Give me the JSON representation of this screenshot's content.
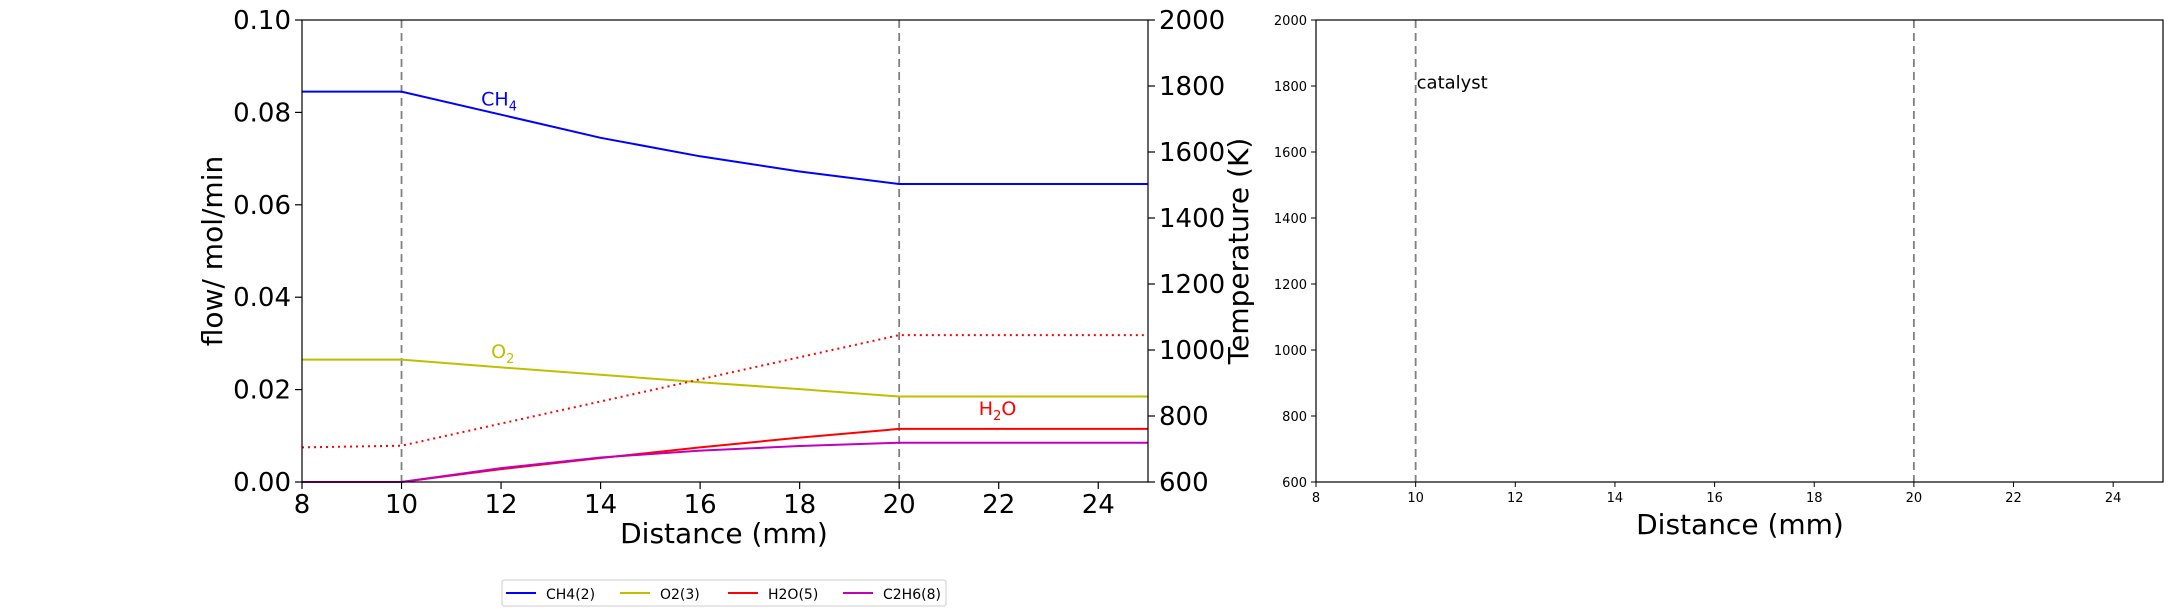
{
  "chart_data": [
    {
      "type": "line",
      "xlabel": "Distance (mm)",
      "ylabel": "flow/ mol/min",
      "y2label": "Temperature (K)",
      "xlim": [
        8,
        25
      ],
      "ylim": [
        0.0,
        0.1
      ],
      "y2lim": [
        600,
        2000
      ],
      "x_ticks": [
        "8",
        "10",
        "12",
        "14",
        "16",
        "18",
        "20",
        "22",
        "24"
      ],
      "y_ticks": [
        "0.00",
        "0.02",
        "0.04",
        "0.06",
        "0.08",
        "0.10"
      ],
      "y2_ticks": [
        "600",
        "800",
        "1000",
        "1200",
        "1400",
        "1600",
        "1800",
        "2000"
      ],
      "vlines": [
        10,
        20
      ],
      "grid": false,
      "series": [
        {
          "name": "CH4(2)",
          "label_main": "CH",
          "label_sub": "4",
          "label_at": [
            11.6,
            0.0815
          ],
          "color": "#0000ff",
          "x": [
            8,
            10,
            12,
            14,
            16,
            18,
            20,
            25
          ],
          "y": [
            0.0845,
            0.0845,
            0.0795,
            0.0745,
            0.0705,
            0.0672,
            0.0645,
            0.0645
          ]
        },
        {
          "name": "O2(3)",
          "label_main": "O",
          "label_sub": "2",
          "label_at": [
            11.8,
            0.0268
          ],
          "color": "#bfbf00",
          "x": [
            8,
            10,
            12,
            14,
            16,
            18,
            20,
            25
          ],
          "y": [
            0.0265,
            0.0265,
            0.0248,
            0.0232,
            0.0216,
            0.0201,
            0.0185,
            0.0185
          ]
        },
        {
          "name": "H2O(5)",
          "label_main": "H",
          "label_sub": "2",
          "label_tail": "O",
          "label_at": [
            21.6,
            0.0145
          ],
          "color": "#ff0000",
          "x": [
            8,
            10,
            12,
            14,
            16,
            18,
            20,
            25
          ],
          "y": [
            0.0,
            0.0,
            0.0028,
            0.0052,
            0.0075,
            0.0096,
            0.0115,
            0.0115
          ]
        },
        {
          "name": "C2H6(8)",
          "color": "#bf00bf",
          "x": [
            8,
            10,
            12,
            14,
            16,
            18,
            20,
            25
          ],
          "y": [
            0.0,
            0.0,
            0.003,
            0.0053,
            0.0068,
            0.0078,
            0.0085,
            0.0085
          ]
        }
      ],
      "temperature": {
        "color": "#ff0000",
        "style": "dotted",
        "x": [
          8,
          10,
          20,
          25
        ],
        "y": [
          705,
          710,
          1045,
          1045
        ]
      },
      "legend": {
        "placement": "below",
        "entries": [
          "CH4(2)",
          "O2(3)",
          "H2O(5)",
          "C2H6(8)"
        ],
        "colors": [
          "#0000ff",
          "#bfbf00",
          "#ff0000",
          "#bf00bf"
        ]
      }
    },
    {
      "type": "line",
      "xlabel": "Distance (mm)",
      "xlim": [
        8,
        25
      ],
      "ylim": [
        600,
        2000
      ],
      "x_ticks": [
        "8",
        "10",
        "12",
        "14",
        "16",
        "18",
        "20",
        "22",
        "24"
      ],
      "y_ticks": [
        "600",
        "800",
        "1000",
        "1200",
        "1400",
        "1600",
        "1800",
        "2000"
      ],
      "vlines": [
        10,
        20
      ],
      "annotation": {
        "text": "catalyst",
        "x": 10,
        "y": 1810
      },
      "series": []
    }
  ]
}
